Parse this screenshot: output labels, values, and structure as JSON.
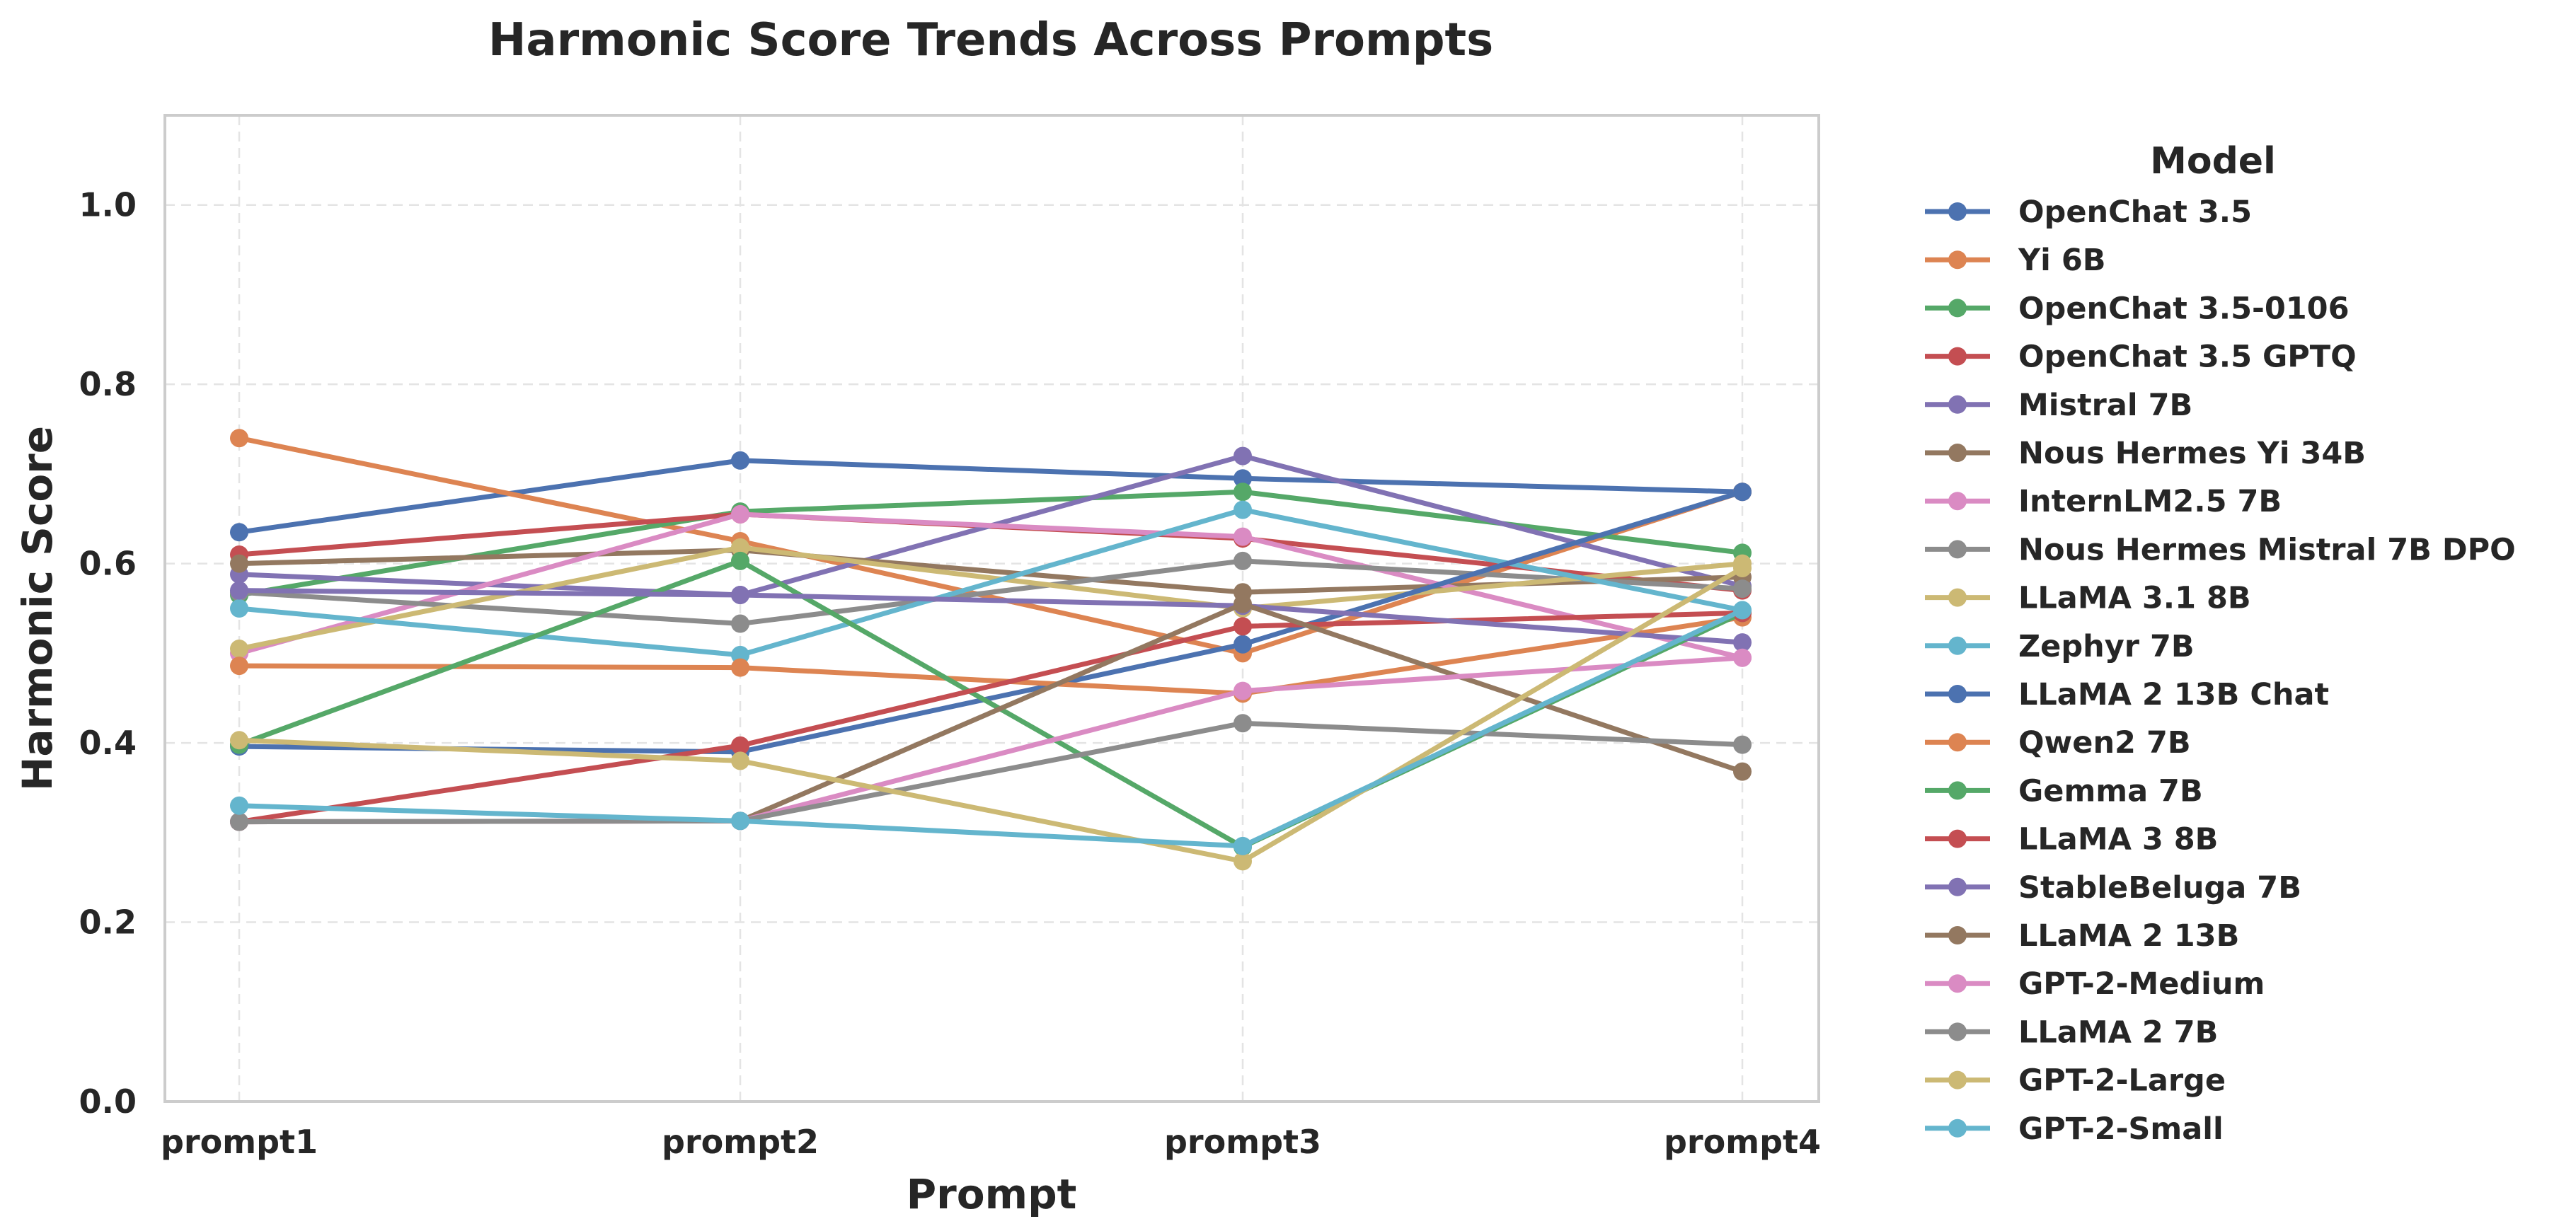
{
  "chart_data": {
    "type": "line",
    "title": "Harmonic Score Trends Across Prompts",
    "xlabel": "Prompt",
    "ylabel": "Harmonic Score",
    "categories": [
      "prompt1",
      "prompt2",
      "prompt3",
      "prompt4"
    ],
    "ylim": [
      0,
      1.1
    ],
    "yticks": [
      0.0,
      0.2,
      0.4,
      0.6,
      0.8,
      1.0
    ],
    "ytick_labels": [
      "0.0",
      "0.2",
      "0.4",
      "0.6",
      "0.8",
      "1.0"
    ],
    "grid": true,
    "legend": {
      "title": "Model",
      "placement": "right, outside plot area"
    },
    "series": [
      {
        "name": "OpenChat 3.5",
        "color": "#4c72b0",
        "values": [
          0.635,
          0.715,
          0.695,
          0.68
        ]
      },
      {
        "name": "Yi 6B",
        "color": "#dd8452",
        "values": [
          0.74,
          0.625,
          0.5,
          0.68
        ]
      },
      {
        "name": "OpenChat 3.5-0106",
        "color": "#55a868",
        "values": [
          0.565,
          0.658,
          0.68,
          0.612
        ]
      },
      {
        "name": "OpenChat 3.5 GPTQ",
        "color": "#c44e52",
        "values": [
          0.61,
          0.655,
          0.628,
          0.57
        ]
      },
      {
        "name": "Mistral 7B",
        "color": "#8172b3",
        "values": [
          0.588,
          0.565,
          0.72,
          0.575
        ]
      },
      {
        "name": "Nous Hermes Yi 34B",
        "color": "#937860",
        "values": [
          0.6,
          0.615,
          0.568,
          0.585
        ]
      },
      {
        "name": "InternLM2.5 7B",
        "color": "#da8bc3",
        "values": [
          0.5,
          0.655,
          0.63,
          0.495
        ]
      },
      {
        "name": "Nous Hermes Mistral 7B DPO",
        "color": "#8c8c8c",
        "values": [
          0.568,
          0.533,
          0.603,
          0.572
        ]
      },
      {
        "name": "LLaMA 3.1 8B",
        "color": "#ccb974",
        "values": [
          0.505,
          0.618,
          0.55,
          0.6
        ]
      },
      {
        "name": "Zephyr 7B",
        "color": "#64b5cd",
        "values": [
          0.55,
          0.498,
          0.66,
          0.548
        ]
      },
      {
        "name": "LLaMA 2 13B Chat",
        "color": "#4c72b0",
        "values": [
          0.396,
          0.39,
          0.51,
          0.68
        ]
      },
      {
        "name": "Qwen2 7B",
        "color": "#dd8452",
        "values": [
          0.486,
          0.484,
          0.455,
          0.54
        ]
      },
      {
        "name": "Gemma 7B",
        "color": "#55a868",
        "values": [
          0.398,
          0.603,
          0.284,
          0.545
        ]
      },
      {
        "name": "LLaMA 3 8B",
        "color": "#c44e52",
        "values": [
          0.312,
          0.397,
          0.53,
          0.545
        ]
      },
      {
        "name": "StableBeluga 7B",
        "color": "#8172b3",
        "values": [
          0.57,
          0.565,
          0.553,
          0.512
        ]
      },
      {
        "name": "LLaMA 2 13B",
        "color": "#937860",
        "values": [
          0.312,
          0.313,
          0.555,
          0.368
        ]
      },
      {
        "name": "GPT-2-Medium",
        "color": "#da8bc3",
        "values": [
          0.312,
          0.313,
          0.458,
          0.495
        ]
      },
      {
        "name": "LLaMA 2 7B",
        "color": "#8c8c8c",
        "values": [
          0.312,
          0.313,
          0.422,
          0.398
        ]
      },
      {
        "name": "GPT-2-Large",
        "color": "#ccb974",
        "values": [
          0.403,
          0.38,
          0.268,
          0.595
        ]
      },
      {
        "name": "GPT-2-Small",
        "color": "#64b5cd",
        "values": [
          0.33,
          0.313,
          0.285,
          0.548
        ]
      }
    ]
  }
}
